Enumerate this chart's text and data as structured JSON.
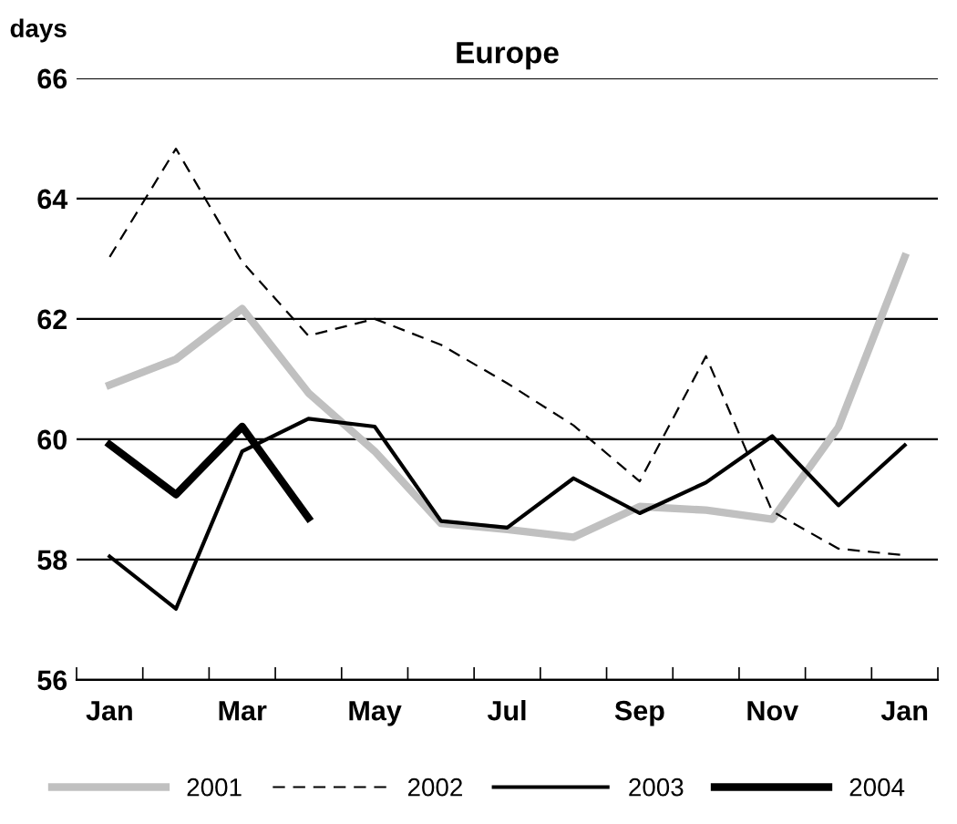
{
  "chart_data": {
    "type": "line",
    "title": "Europe",
    "ylabel": "days",
    "categories": [
      "Jan",
      null,
      "Mar",
      null,
      "May",
      null,
      "Jul",
      null,
      "Sep",
      null,
      "Nov",
      null,
      "Jan"
    ],
    "ylim": [
      56,
      66
    ],
    "yticks": [
      56,
      58,
      60,
      62,
      64,
      66
    ],
    "grid": "y",
    "legend": "bottom",
    "series": [
      {
        "name": "2001",
        "color": "#c0c0c0",
        "line_style": "solid",
        "values": [
          60.9,
          61.33,
          62.17,
          60.77,
          59.8,
          58.6,
          58.5,
          58.37,
          58.88,
          58.82,
          58.67,
          60.2,
          63.03
        ]
      },
      {
        "name": "2002",
        "color": "#000000",
        "line_style": "dashed",
        "values": [
          63.03,
          64.83,
          62.95,
          61.72,
          62.0,
          61.57,
          60.93,
          60.23,
          59.3,
          61.38,
          58.8,
          58.18,
          58.07
        ]
      },
      {
        "name": "2003",
        "color": "#000000",
        "line_style": "solid",
        "values": [
          58.05,
          57.18,
          59.8,
          60.34,
          60.21,
          58.64,
          58.53,
          59.35,
          58.77,
          59.28,
          60.05,
          58.9,
          59.9
        ]
      },
      {
        "name": "2004",
        "color": "#000000",
        "line_style": "solid",
        "values": [
          59.91,
          59.08,
          60.21,
          58.69,
          null,
          null,
          null,
          null,
          null,
          null,
          null,
          null,
          null
        ]
      }
    ]
  }
}
